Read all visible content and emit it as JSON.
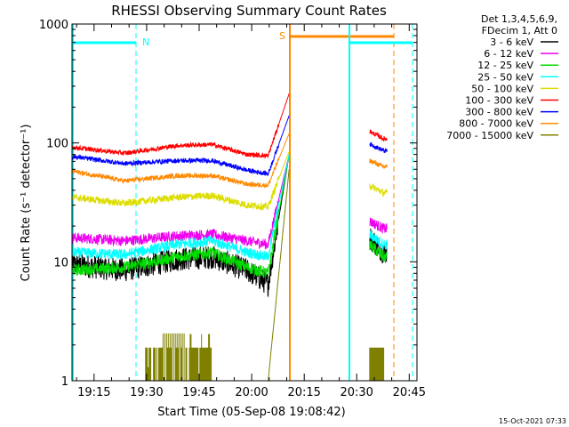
{
  "chart_data": {
    "type": "line",
    "title": "RHESSI Observing Summary Count Rates",
    "xlabel": "Start Time (05-Sep-08 19:08:42)",
    "ylabel": "Count Rate (s⁻¹ detector⁻¹)",
    "ylim": [
      1,
      1000
    ],
    "yscale": "log",
    "y_ticks": [
      {
        "value": 1,
        "label": "1"
      },
      {
        "value": 10,
        "label": "10"
      },
      {
        "value": 100,
        "label": "100"
      },
      {
        "value": 1000,
        "label": "1000"
      }
    ],
    "x_ticks": [
      "19:15",
      "19:30",
      "19:45",
      "20:00",
      "20:15",
      "20:30",
      "20:45"
    ],
    "xlim_minutes_after_start": [
      0,
      98.5
    ],
    "legend_position": "right",
    "legend_header": [
      "Det 1,3,4,5,6,9,",
      "FDecim 1, Att 0"
    ],
    "series": [
      {
        "name": "3 - 6 keV",
        "color": "#000000",
        "values": [
          {
            "t": 0,
            "y": 9.5
          },
          {
            "t": 15,
            "y": 8.5
          },
          {
            "t": 30,
            "y": 10.5
          },
          {
            "t": 40,
            "y": 11
          },
          {
            "t": 50,
            "y": 8.5
          },
          {
            "t": 56,
            "y": 6.5
          },
          {
            "t": 62,
            "y": 80
          },
          {
            "t": 85,
            "y": 16
          },
          {
            "t": 89,
            "y": 12
          }
        ]
      },
      {
        "name": "6 - 12 keV",
        "color": "#ee00ee",
        "values": [
          {
            "t": 0,
            "y": 16
          },
          {
            "t": 15,
            "y": 15
          },
          {
            "t": 30,
            "y": 16.5
          },
          {
            "t": 40,
            "y": 17
          },
          {
            "t": 50,
            "y": 15
          },
          {
            "t": 56,
            "y": 14
          },
          {
            "t": 62,
            "y": 80
          },
          {
            "t": 85,
            "y": 22
          },
          {
            "t": 89,
            "y": 19
          }
        ]
      },
      {
        "name": "12 - 25 keV",
        "color": "#00dd00",
        "values": [
          {
            "t": 0,
            "y": 8.5
          },
          {
            "t": 15,
            "y": 9
          },
          {
            "t": 30,
            "y": 11
          },
          {
            "t": 40,
            "y": 12
          },
          {
            "t": 50,
            "y": 9
          },
          {
            "t": 56,
            "y": 8
          },
          {
            "t": 62,
            "y": 80
          },
          {
            "t": 85,
            "y": 14
          },
          {
            "t": 89,
            "y": 11
          }
        ]
      },
      {
        "name": "25 - 50 keV",
        "color": "#00ffff",
        "values": [
          {
            "t": 0,
            "y": 12
          },
          {
            "t": 15,
            "y": 11.5
          },
          {
            "t": 30,
            "y": 14
          },
          {
            "t": 40,
            "y": 15
          },
          {
            "t": 50,
            "y": 12
          },
          {
            "t": 56,
            "y": 11
          },
          {
            "t": 62,
            "y": 80
          },
          {
            "t": 85,
            "y": 17
          },
          {
            "t": 89,
            "y": 14
          }
        ]
      },
      {
        "name": "50 - 100 keV",
        "color": "#dddd00",
        "values": [
          {
            "t": 0,
            "y": 35
          },
          {
            "t": 15,
            "y": 31
          },
          {
            "t": 30,
            "y": 35
          },
          {
            "t": 40,
            "y": 36
          },
          {
            "t": 50,
            "y": 30
          },
          {
            "t": 56,
            "y": 29
          },
          {
            "t": 62,
            "y": 85
          },
          {
            "t": 85,
            "y": 44
          },
          {
            "t": 89,
            "y": 38
          }
        ]
      },
      {
        "name": "100 - 300 keV",
        "color": "#ff0000",
        "values": [
          {
            "t": 0,
            "y": 92
          },
          {
            "t": 15,
            "y": 82
          },
          {
            "t": 30,
            "y": 95
          },
          {
            "t": 40,
            "y": 97
          },
          {
            "t": 50,
            "y": 80
          },
          {
            "t": 56,
            "y": 78
          },
          {
            "t": 62,
            "y": 260
          },
          {
            "t": 85,
            "y": 125
          },
          {
            "t": 89,
            "y": 108
          }
        ]
      },
      {
        "name": "300 - 800 keV",
        "color": "#0000ff",
        "values": [
          {
            "t": 0,
            "y": 77
          },
          {
            "t": 15,
            "y": 67
          },
          {
            "t": 30,
            "y": 71
          },
          {
            "t": 40,
            "y": 71
          },
          {
            "t": 50,
            "y": 59
          },
          {
            "t": 56,
            "y": 55
          },
          {
            "t": 62,
            "y": 170
          },
          {
            "t": 85,
            "y": 98
          },
          {
            "t": 89,
            "y": 86
          }
        ]
      },
      {
        "name": "800 - 7000 keV",
        "color": "#ff8800",
        "values": [
          {
            "t": 0,
            "y": 58
          },
          {
            "t": 15,
            "y": 48
          },
          {
            "t": 30,
            "y": 53
          },
          {
            "t": 40,
            "y": 53
          },
          {
            "t": 50,
            "y": 45
          },
          {
            "t": 56,
            "y": 44
          },
          {
            "t": 62,
            "y": 120
          },
          {
            "t": 85,
            "y": 71
          },
          {
            "t": 89,
            "y": 63
          }
        ]
      },
      {
        "name": "7000 - 15000 keV",
        "color": "#808000",
        "values": [
          {
            "t": 20,
            "y": 1.9
          },
          {
            "t": 40,
            "y": 2.5
          },
          {
            "t": 55,
            "y": 1
          },
          {
            "t": 62,
            "y": 60
          },
          {
            "t": 85,
            "y": 1.9
          },
          {
            "t": 89,
            "y": 1.9
          }
        ]
      }
    ],
    "annotations": [
      {
        "label": "N",
        "color": "#00ffff"
      },
      {
        "label": "S",
        "color": "#ff8800"
      }
    ],
    "footer_date": "15-Oct-2021 07:33"
  }
}
